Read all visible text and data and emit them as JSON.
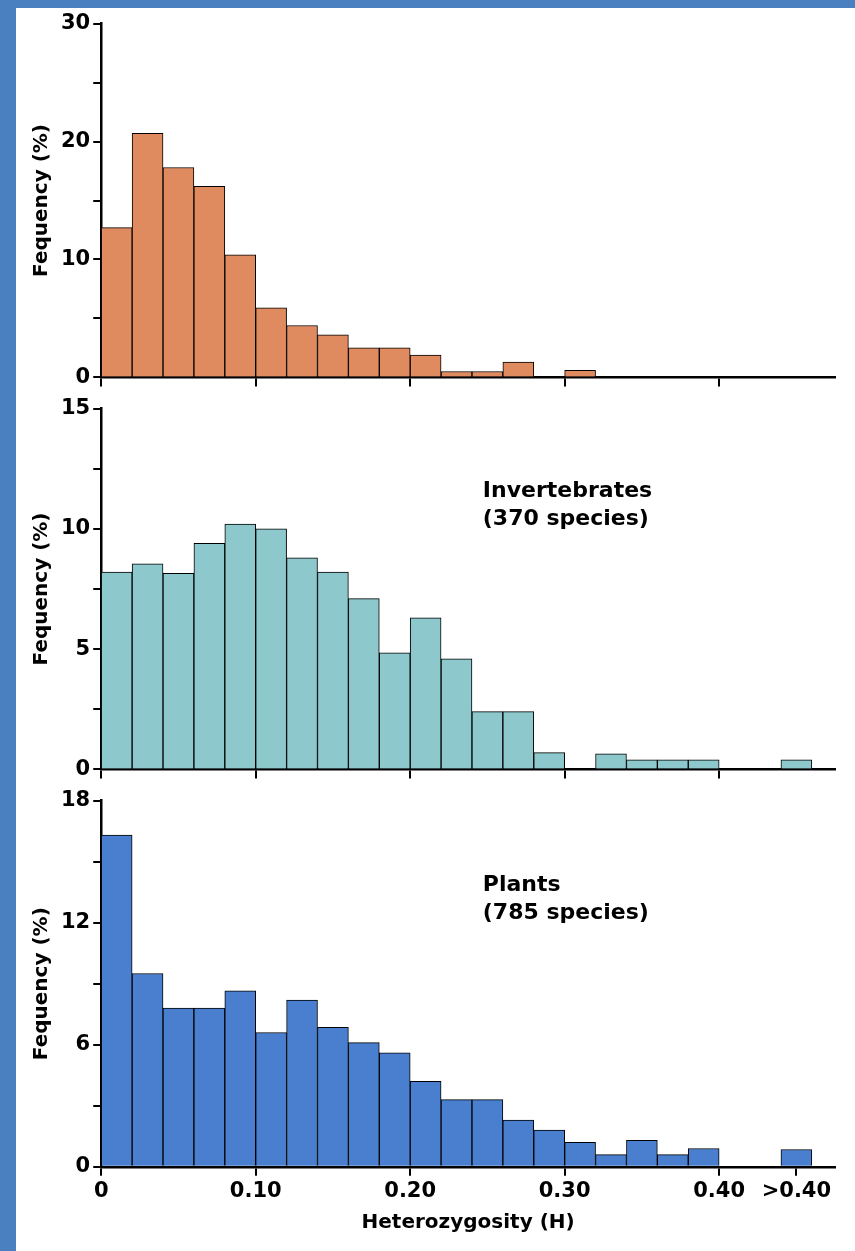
{
  "chart_data": [
    {
      "type": "histogram",
      "ylabel": "Fequency (%)",
      "bins": [
        0,
        0.02,
        0.04,
        0.06,
        0.08,
        0.1,
        0.12,
        0.14,
        0.16,
        0.18,
        0.2,
        0.22,
        0.24,
        0.26,
        0.28,
        0.3,
        0.32
      ],
      "values": [
        12.7,
        20.7,
        17.8,
        16.2,
        10.4,
        5.9,
        4.4,
        3.6,
        2.5,
        2.5,
        1.9,
        0.5,
        0.5,
        1.3,
        0,
        0.6
      ],
      "color": "#e08a60",
      "xlim": [
        0,
        0.475
      ],
      "xticks": [
        0,
        0.1,
        0.2,
        0.3,
        0.4
      ],
      "ylim": [
        0,
        30
      ],
      "yticks": [
        0,
        {
          "value": 5,
          "label": null
        },
        10,
        {
          "value": 15,
          "label": null
        },
        20,
        {
          "value": 25,
          "label": null
        },
        30
      ],
      "tick_labels": "y",
      "grid": false,
      "legend": false
    },
    {
      "type": "histogram",
      "ylabel": "Fequency (%)",
      "bins": [
        0,
        0.02,
        0.04,
        0.06,
        0.08,
        0.1,
        0.12,
        0.14,
        0.16,
        0.18,
        0.2,
        0.22,
        0.24,
        0.26,
        0.28,
        0.3,
        0.32,
        0.34,
        0.36,
        0.38,
        0.4,
        0.42,
        0.44,
        0.46
      ],
      "values": [
        8.2,
        8.55,
        8.15,
        9.4,
        10.2,
        10,
        8.8,
        8.2,
        7.1,
        4.85,
        6.3,
        4.6,
        2.4,
        2.4,
        0.7,
        0,
        0.65,
        0.4,
        0.4,
        0.4,
        0,
        0,
        0.4
      ],
      "color": "#8cc8cc",
      "xlim": [
        0,
        0.475
      ],
      "xticks": [
        0,
        0.1,
        0.2,
        0.3,
        0.4
      ],
      "ylim": [
        0,
        15
      ],
      "yticks": [
        0,
        {
          "value": 2.5,
          "label": null
        },
        5,
        {
          "value": 7.5,
          "label": null
        },
        10,
        {
          "value": 12.5,
          "label": null
        },
        15
      ],
      "tick_labels": "y",
      "grid": false,
      "legend": false,
      "annotations": [
        "Invertebrates\n(370 species)"
      ]
    },
    {
      "type": "histogram",
      "xlabel": "Heterozygosity (H)",
      "ylabel": "Fequency (%)",
      "bins": [
        0,
        0.02,
        0.04,
        0.06,
        0.08,
        0.1,
        0.12,
        0.14,
        0.16,
        0.18,
        0.2,
        0.22,
        0.24,
        0.26,
        0.28,
        0.3,
        0.32,
        0.34,
        0.36,
        0.38,
        0.4,
        0.42,
        0.44,
        0.46
      ],
      "values": [
        16.3,
        9.5,
        7.8,
        7.8,
        8.65,
        6.6,
        8.2,
        6.85,
        6.1,
        5.6,
        4.2,
        3.3,
        3.3,
        2.3,
        1.8,
        1.2,
        0.6,
        1.3,
        0.6,
        0.9,
        0,
        0,
        0.85
      ],
      "color": "#4a7fd0",
      "xlim": [
        0,
        0.475
      ],
      "xticks": [
        0,
        {
          "value": 0.1,
          "label": "0.10"
        },
        {
          "value": 0.2,
          "label": "0.20"
        },
        {
          "value": 0.3,
          "label": "0.30"
        },
        {
          "value": 0.4,
          "label": "0.40"
        },
        {
          "value": 0.45,
          "label": ">0.40"
        }
      ],
      "ylim": [
        0,
        18
      ],
      "yticks": [
        0,
        {
          "value": 3,
          "label": null
        },
        6,
        {
          "value": 9,
          "label": null
        },
        12,
        {
          "value": 15,
          "label": null
        },
        18
      ],
      "grid": false,
      "legend": false,
      "annotations": [
        "Plants\n(785 species)"
      ]
    }
  ]
}
